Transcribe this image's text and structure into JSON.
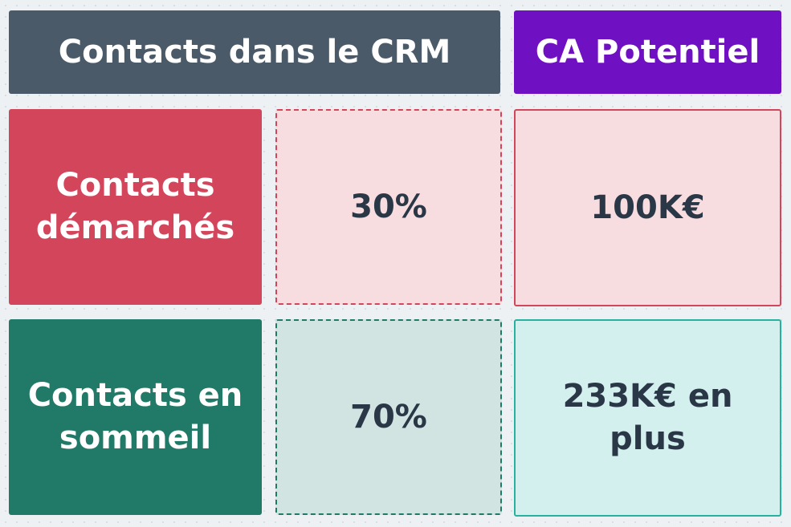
{
  "headers": {
    "crm": "Contacts dans le CRM",
    "ca": "CA Potentiel"
  },
  "rows": [
    {
      "label_line1": "Contacts",
      "label_line2": "démarchés",
      "percent": "30%",
      "ca_line1": "100K€",
      "ca_line2": ""
    },
    {
      "label_line1": "Contacts en",
      "label_line2": "sommeil",
      "percent": "70%",
      "ca_line1": "233K€ en",
      "ca_line2": "plus"
    }
  ],
  "colors": {
    "header_crm": "#4b5a69",
    "header_ca": "#6f10c3",
    "demarches": "#d2455b",
    "sommeil": "#217a67",
    "value_text": "#2a3746"
  }
}
